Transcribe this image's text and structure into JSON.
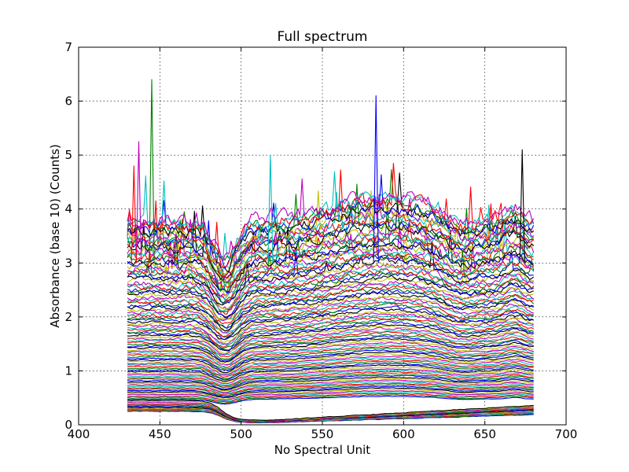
{
  "chart_data": {
    "type": "line",
    "title": "Full spectrum",
    "xlabel": "No Spectral Unit",
    "ylabel": "Absorbance (base 10) (Counts)",
    "xlim": [
      400,
      700
    ],
    "ylim": [
      0,
      7
    ],
    "xticks": [
      400,
      450,
      500,
      550,
      600,
      650,
      700
    ],
    "yticks": [
      0,
      1,
      2,
      3,
      4,
      5,
      6,
      7
    ],
    "xtick_labels": [
      "400",
      "450",
      "500",
      "550",
      "600",
      "650",
      "700"
    ],
    "ytick_labels": [
      "0",
      "1",
      "2",
      "3",
      "4",
      "5",
      "6",
      "7"
    ],
    "grid": true,
    "legend": "none",
    "data_x_range": [
      430,
      680
    ],
    "series_count": 110,
    "series_colors": [
      "#0000ff",
      "#008000",
      "#ff0000",
      "#00bfbf",
      "#bf00bf",
      "#bfbf00",
      "#000000"
    ],
    "series_profile": {
      "description_x": [
        430,
        445,
        460,
        475,
        485,
        495,
        505,
        520,
        550,
        580,
        600,
        630,
        660,
        680
      ],
      "base_offset_at_430": [
        0.25,
        3.8
      ],
      "lowest_curve_min_near_x": 520,
      "lowest_curve_min_value": 0.05
    },
    "peaks": [
      {
        "x": 445,
        "y": 6.4
      },
      {
        "x": 437,
        "y": 5.25
      },
      {
        "x": 583,
        "y": 6.1
      },
      {
        "x": 518,
        "y": 5.0
      },
      {
        "x": 673,
        "y": 5.1
      },
      {
        "x": 434,
        "y": 4.8
      }
    ]
  }
}
